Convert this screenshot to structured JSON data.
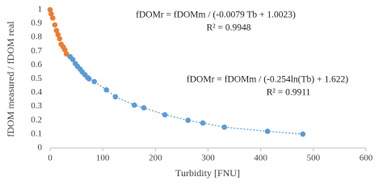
{
  "chart_data": {
    "type": "scatter",
    "xlabel": "Turbidity [FNU]",
    "ylabel": "fDOM measured / fDOM real",
    "annotations": [
      "fDOMr = fDOMm / (-0.0079 Tb + 1.0023)",
      "R² = 0.9948",
      "fDOMr = fDOMm / (-0.254ln(Tb) + 1.622)",
      "R² = 0.9911"
    ],
    "xlim": [
      0,
      600
    ],
    "xticks": [
      0,
      100,
      200,
      300,
      400,
      500,
      600
    ],
    "ylim": [
      0,
      1
    ],
    "yticks": [
      0,
      0.1,
      0.2,
      0.3,
      0.4,
      0.5,
      0.6,
      0.7,
      0.8,
      0.9,
      1
    ],
    "grid": false,
    "series": [
      {
        "color": "#ed7d31",
        "trend": false,
        "x": [
          0,
          2,
          5,
          9,
          12,
          15,
          18,
          21,
          25,
          28,
          31
        ],
        "values": [
          1,
          0.97,
          0.94,
          0.89,
          0.85,
          0.82,
          0.79,
          0.75,
          0.73,
          0.71,
          0.68
        ]
      },
      {
        "color": "#5b9bd5",
        "trend": true,
        "x": [
          38,
          43,
          48,
          52,
          57,
          61,
          66,
          71,
          74,
          84,
          107,
          124,
          160,
          178,
          218,
          262,
          290,
          331,
          413,
          480
        ],
        "values": [
          0.66,
          0.64,
          0.61,
          0.59,
          0.57,
          0.55,
          0.53,
          0.51,
          0.5,
          0.48,
          0.42,
          0.37,
          0.31,
          0.29,
          0.24,
          0.2,
          0.18,
          0.15,
          0.12,
          0.1
        ]
      }
    ]
  }
}
